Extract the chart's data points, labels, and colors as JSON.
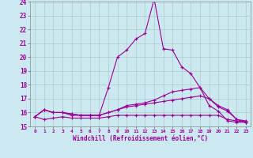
{
  "xlabel": "Windchill (Refroidissement éolien,°C)",
  "bg_color": "#cce8f0",
  "grid_color": "#aacccc",
  "line_color": "#990099",
  "xlim": [
    -0.5,
    23.5
  ],
  "ylim": [
    15,
    24
  ],
  "yticks": [
    15,
    16,
    17,
    18,
    19,
    20,
    21,
    22,
    23,
    24
  ],
  "xticks": [
    0,
    1,
    2,
    3,
    4,
    5,
    6,
    7,
    8,
    9,
    10,
    11,
    12,
    13,
    14,
    15,
    16,
    17,
    18,
    19,
    20,
    21,
    22,
    23
  ],
  "line1_x": [
    0,
    1,
    2,
    3,
    4,
    5,
    6,
    7,
    8,
    9,
    10,
    11,
    12,
    13,
    14,
    15,
    16,
    17,
    18,
    19,
    20,
    21,
    22,
    23
  ],
  "line1_y": [
    15.7,
    16.2,
    16.0,
    16.0,
    15.8,
    15.8,
    15.8,
    15.8,
    17.8,
    20.0,
    20.5,
    21.3,
    21.7,
    24.2,
    20.6,
    20.5,
    19.3,
    18.8,
    17.8,
    16.5,
    16.1,
    15.4,
    15.3,
    15.3
  ],
  "line2_x": [
    0,
    1,
    2,
    3,
    4,
    5,
    6,
    7,
    8,
    9,
    10,
    11,
    12,
    13,
    14,
    15,
    16,
    17,
    18,
    19,
    20,
    21,
    22,
    23
  ],
  "line2_y": [
    15.7,
    16.2,
    16.0,
    16.0,
    15.9,
    15.8,
    15.8,
    15.8,
    16.0,
    16.2,
    16.5,
    16.6,
    16.7,
    16.9,
    17.2,
    17.5,
    17.6,
    17.7,
    17.8,
    17.0,
    16.5,
    16.2,
    15.5,
    15.3
  ],
  "line3_x": [
    0,
    1,
    2,
    3,
    4,
    5,
    6,
    7,
    8,
    9,
    10,
    11,
    12,
    13,
    14,
    15,
    16,
    17,
    18,
    19,
    20,
    21,
    22,
    23
  ],
  "line3_y": [
    15.7,
    16.2,
    16.0,
    16.0,
    15.9,
    15.8,
    15.8,
    15.8,
    16.0,
    16.2,
    16.4,
    16.5,
    16.6,
    16.7,
    16.8,
    16.9,
    17.0,
    17.1,
    17.2,
    17.0,
    16.4,
    16.1,
    15.5,
    15.4
  ],
  "line4_x": [
    0,
    1,
    2,
    3,
    4,
    5,
    6,
    7,
    8,
    9,
    10,
    11,
    12,
    13,
    14,
    15,
    16,
    17,
    18,
    19,
    20,
    21,
    22,
    23
  ],
  "line4_y": [
    15.7,
    15.5,
    15.6,
    15.7,
    15.6,
    15.6,
    15.6,
    15.6,
    15.7,
    15.8,
    15.8,
    15.8,
    15.8,
    15.8,
    15.8,
    15.8,
    15.8,
    15.8,
    15.8,
    15.8,
    15.8,
    15.5,
    15.4,
    15.3
  ]
}
